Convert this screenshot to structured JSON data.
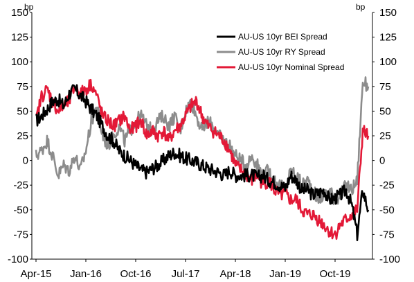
{
  "chart_data": {
    "type": "line",
    "title": "",
    "ylabel_left": "bp",
    "ylabel_right": "bp",
    "ylim": [
      -100,
      150
    ],
    "yticks_left": [
      "150",
      "125",
      "100",
      "75",
      "50",
      "25",
      "0",
      "-25",
      "-50",
      "-75",
      "-100"
    ],
    "yticks_right": [
      "150",
      "125",
      "100",
      "75",
      "50",
      "25",
      "0",
      "-25",
      "-50",
      "-75",
      "-100"
    ],
    "xticks": [
      "Apr-15",
      "Jan-16",
      "Oct-16",
      "Jul-17",
      "Apr-18",
      "Jan-19",
      "Oct-19"
    ],
    "grid": false,
    "legend_position": "top-right",
    "series": [
      {
        "name": "AU-US 10yr BEI Spread",
        "color": "#000000",
        "x": [
          "Apr-15",
          "May-15",
          "Jun-15",
          "Jul-15",
          "Aug-15",
          "Sep-15",
          "Oct-15",
          "Nov-15",
          "Dec-15",
          "Jan-16",
          "Feb-16",
          "Mar-16",
          "Apr-16",
          "May-16",
          "Jun-16",
          "Jul-16",
          "Aug-16",
          "Sep-16",
          "Oct-16",
          "Nov-16",
          "Dec-16",
          "Jan-17",
          "Feb-17",
          "Mar-17",
          "Apr-17",
          "May-17",
          "Jun-17",
          "Jul-17",
          "Aug-17",
          "Sep-17",
          "Oct-17",
          "Nov-17",
          "Dec-17",
          "Jan-18",
          "Feb-18",
          "Mar-18",
          "Apr-18",
          "May-18",
          "Jun-18",
          "Jul-18",
          "Aug-18",
          "Sep-18",
          "Oct-18",
          "Nov-18",
          "Dec-18",
          "Jan-19",
          "Feb-19",
          "Mar-19",
          "Apr-19",
          "May-19",
          "Jun-19",
          "Jul-19",
          "Aug-19",
          "Sep-19",
          "Oct-19",
          "Nov-19",
          "Dec-19",
          "Jan-20",
          "Feb-20",
          "Mar-20",
          "Apr-20"
        ],
        "values": [
          40,
          45,
          52,
          60,
          62,
          55,
          68,
          72,
          66,
          60,
          52,
          45,
          35,
          25,
          20,
          10,
          5,
          0,
          -5,
          -10,
          -12,
          -8,
          -5,
          0,
          5,
          8,
          5,
          2,
          0,
          -2,
          -5,
          -8,
          -10,
          -12,
          -15,
          -10,
          -15,
          -15,
          -15,
          -15,
          -17,
          -15,
          -20,
          -22,
          -25,
          -28,
          -15,
          -20,
          -30,
          -30,
          -35,
          -33,
          -30,
          -40,
          -38,
          -35,
          -30,
          -45,
          -75,
          -30,
          -50
        ]
      },
      {
        "name": "AU-US 10yr RY Spread",
        "color": "#8c8c8c",
        "x": [
          "Apr-15",
          "May-15",
          "Jun-15",
          "Jul-15",
          "Aug-15",
          "Sep-15",
          "Oct-15",
          "Nov-15",
          "Dec-15",
          "Jan-16",
          "Feb-16",
          "Mar-16",
          "Apr-16",
          "May-16",
          "Jun-16",
          "Jul-16",
          "Aug-16",
          "Sep-16",
          "Oct-16",
          "Nov-16",
          "Dec-16",
          "Jan-17",
          "Feb-17",
          "Mar-17",
          "Apr-17",
          "May-17",
          "Jun-17",
          "Jul-17",
          "Aug-17",
          "Sep-17",
          "Oct-17",
          "Nov-17",
          "Dec-17",
          "Jan-18",
          "Feb-18",
          "Mar-18",
          "Apr-18",
          "May-18",
          "Jun-18",
          "Jul-18",
          "Aug-18",
          "Sep-18",
          "Oct-18",
          "Nov-18",
          "Dec-18",
          "Jan-19",
          "Feb-19",
          "Mar-19",
          "Apr-19",
          "May-19",
          "Jun-19",
          "Jul-19",
          "Aug-19",
          "Sep-19",
          "Oct-19",
          "Nov-19",
          "Dec-19",
          "Jan-20",
          "Feb-20",
          "Mar-20",
          "Apr-20"
        ],
        "values": [
          5,
          10,
          20,
          5,
          -15,
          -5,
          -10,
          5,
          -10,
          10,
          40,
          55,
          25,
          15,
          25,
          35,
          20,
          30,
          40,
          45,
          35,
          30,
          40,
          45,
          35,
          45,
          30,
          50,
          60,
          45,
          30,
          40,
          35,
          25,
          20,
          15,
          5,
          0,
          -5,
          5,
          -5,
          -15,
          -10,
          -20,
          -25,
          -30,
          -10,
          -15,
          -25,
          -20,
          -30,
          -40,
          -35,
          -30,
          -40,
          -35,
          -25,
          -30,
          -20,
          80,
          75
        ]
      },
      {
        "name": "AU-US 10yr Nominal Spread",
        "color": "#e31937",
        "x": [
          "Apr-15",
          "May-15",
          "Jun-15",
          "Jul-15",
          "Aug-15",
          "Sep-15",
          "Oct-15",
          "Nov-15",
          "Dec-15",
          "Jan-16",
          "Feb-16",
          "Mar-16",
          "Apr-16",
          "May-16",
          "Jun-16",
          "Jul-16",
          "Aug-16",
          "Sep-16",
          "Oct-16",
          "Nov-16",
          "Dec-16",
          "Jan-17",
          "Feb-17",
          "Mar-17",
          "Apr-17",
          "May-17",
          "Jun-17",
          "Jul-17",
          "Aug-17",
          "Sep-17",
          "Oct-17",
          "Nov-17",
          "Dec-17",
          "Jan-18",
          "Feb-18",
          "Mar-18",
          "Apr-18",
          "May-18",
          "Jun-18",
          "Jul-18",
          "Aug-18",
          "Sep-18",
          "Oct-18",
          "Nov-18",
          "Dec-18",
          "Jan-19",
          "Feb-19",
          "Mar-19",
          "Apr-19",
          "May-19",
          "Jun-19",
          "Jul-19",
          "Aug-19",
          "Sep-19",
          "Oct-19",
          "Nov-19",
          "Dec-19",
          "Jan-20",
          "Feb-20",
          "Mar-20",
          "Apr-20"
        ],
        "values": [
          40,
          65,
          72,
          60,
          50,
          55,
          60,
          75,
          68,
          72,
          78,
          65,
          45,
          40,
          35,
          40,
          45,
          30,
          35,
          40,
          25,
          30,
          25,
          30,
          20,
          30,
          35,
          45,
          55,
          60,
          45,
          35,
          30,
          25,
          20,
          10,
          -5,
          -10,
          -15,
          -20,
          -15,
          -25,
          -20,
          -30,
          -35,
          -35,
          -40,
          -40,
          -50,
          -55,
          -55,
          -60,
          -65,
          -72,
          -75,
          -65,
          -60,
          -55,
          -50,
          30,
          25
        ]
      }
    ]
  }
}
